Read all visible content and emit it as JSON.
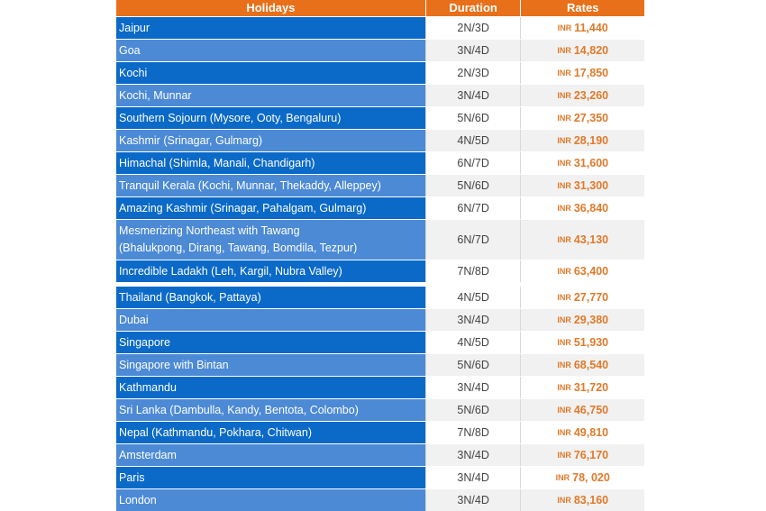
{
  "header": {
    "holidays": "Holidays",
    "duration": "Duration",
    "rates": "Rates"
  },
  "currency": "INR",
  "colors": {
    "header_bg": "#e8701a",
    "row_dark": "#0b6ac8",
    "row_light": "#4c8ad6",
    "rate_text": "#e07a2a"
  },
  "domestic": [
    {
      "name": "Jaipur",
      "duration": "2N/3D",
      "rate": "11,440"
    },
    {
      "name": "Goa",
      "duration": "3N/4D",
      "rate": "14,820"
    },
    {
      "name": "Kochi",
      "duration": "2N/3D",
      "rate": "17,850"
    },
    {
      "name": "Kochi, Munnar",
      "duration": "3N/4D",
      "rate": "23,260"
    },
    {
      "name": "Southern Sojourn (Mysore, Ooty, Bengaluru)",
      "duration": "5N/6D",
      "rate": "27,350"
    },
    {
      "name": "Kashmir (Srinagar, Gulmarg)",
      "duration": "4N/5D",
      "rate": "28,190"
    },
    {
      "name": "Himachal (Shimla, Manali, Chandigarh)",
      "duration": "6N/7D",
      "rate": "31,600"
    },
    {
      "name": "Tranquil Kerala (Kochi, Munnar, Thekaddy, Alleppey)",
      "duration": "5N/6D",
      "rate": "31,300"
    },
    {
      "name": "Amazing Kashmir (Srinagar, Pahalgam, Gulmarg)",
      "duration": "6N/7D",
      "rate": "36,840"
    },
    {
      "name": "Mesmerizing Northeast with Tawang",
      "name2": "(Bhalukpong, Dirang, Tawang, Bomdila, Tezpur)",
      "duration": "6N/7D",
      "rate": "43,130"
    },
    {
      "name": "Incredible Ladakh (Leh, Kargil, Nubra Valley)",
      "duration": "7N/8D",
      "rate": "63,400"
    }
  ],
  "international": [
    {
      "name": "Thailand (Bangkok, Pattaya)",
      "duration": "4N/5D",
      "rate": "27,770"
    },
    {
      "name": "Dubai",
      "duration": "3N/4D",
      "rate": "29,380"
    },
    {
      "name": "Singapore",
      "duration": "4N/5D",
      "rate": "51,930"
    },
    {
      "name": "Singapore with Bintan",
      "duration": "5N/6D",
      "rate": "68,540"
    },
    {
      "name": "Kathmandu",
      "duration": "3N/4D",
      "rate": "31,720"
    },
    {
      "name": "Sri Lanka (Dambulla, Kandy, Bentota, Colombo)",
      "duration": "5N/6D",
      "rate": "46,750"
    },
    {
      "name": "Nepal (Kathmandu, Pokhara, Chitwan)",
      "duration": "7N/8D",
      "rate": "49,810"
    },
    {
      "name": "Amsterdam",
      "duration": "3N/4D",
      "rate": "76,170"
    },
    {
      "name": "Paris",
      "duration": "3N/4D",
      "rate": "78, 020"
    },
    {
      "name": "London",
      "duration": "3N/4D",
      "rate": "83,160"
    }
  ]
}
